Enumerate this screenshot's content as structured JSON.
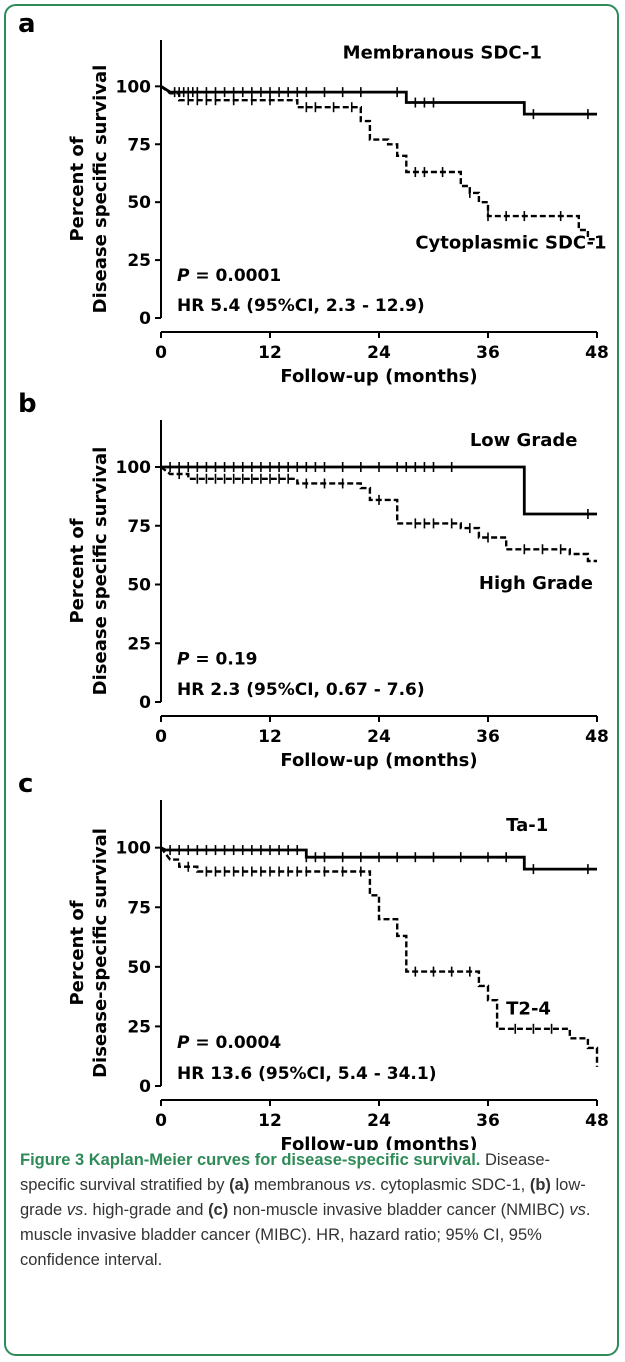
{
  "chart_data": [
    {
      "type": "line",
      "subtype": "kaplan-meier",
      "panel": "a",
      "xlabel": "Follow-up (months)",
      "ylabel_line1": "Percent of",
      "ylabel_line2": "Disease specific survival",
      "xticks": [
        "0",
        "12",
        "24",
        "36",
        "48"
      ],
      "yticks": [
        "0",
        "25",
        "50",
        "75",
        "100"
      ],
      "xlim": [
        0,
        48
      ],
      "ylim": [
        0,
        120
      ],
      "p_prefix": "P",
      "p_text": " = 0.0001",
      "hr_text": "HR 5.4 (95%CI, 2.3 - 12.9)",
      "series": [
        {
          "name": "Membranous SDC-1",
          "style": "solid",
          "label_at": [
            20,
            112
          ],
          "steps": [
            [
              0,
              100
            ],
            [
              1,
              97.5
            ],
            [
              27,
              97.5
            ],
            [
              27,
              93
            ],
            [
              40,
              93
            ],
            [
              40,
              88
            ],
            [
              48,
              88
            ]
          ],
          "censor": [
            1.5,
            2,
            2.5,
            3,
            3.5,
            4,
            5,
            6,
            7,
            8,
            9,
            10,
            11,
            12,
            13,
            14,
            15,
            16,
            18,
            20,
            22,
            26,
            28,
            29,
            30,
            41,
            47
          ]
        },
        {
          "name": "Cytoplasmic SDC-1",
          "style": "dashed",
          "label_at": [
            28,
            30
          ],
          "steps": [
            [
              0,
              100
            ],
            [
              1,
              97
            ],
            [
              2,
              97
            ],
            [
              2,
              94
            ],
            [
              15,
              94
            ],
            [
              15,
              91
            ],
            [
              22,
              91
            ],
            [
              22,
              85
            ],
            [
              23,
              85
            ],
            [
              23,
              77
            ],
            [
              25,
              77
            ],
            [
              25,
              75
            ],
            [
              26,
              75
            ],
            [
              26,
              70
            ],
            [
              27,
              70
            ],
            [
              27,
              63
            ],
            [
              33,
              63
            ],
            [
              33,
              57
            ],
            [
              34,
              57
            ],
            [
              34,
              54
            ],
            [
              35,
              54
            ],
            [
              35,
              50
            ],
            [
              36,
              50
            ],
            [
              36,
              44
            ],
            [
              46,
              44
            ],
            [
              46,
              38
            ],
            [
              47,
              38
            ],
            [
              47,
              34
            ],
            [
              48,
              34
            ]
          ],
          "censor": [
            3,
            4,
            5,
            6,
            8,
            10,
            12,
            16,
            17,
            19,
            21,
            28,
            29,
            31,
            34,
            36,
            38,
            40,
            44
          ]
        }
      ]
    },
    {
      "type": "line",
      "subtype": "kaplan-meier",
      "panel": "b",
      "xlabel": "Follow-up (months)",
      "ylabel_line1": "Percent of",
      "ylabel_line2": "Disease specific survival",
      "xticks": [
        "0",
        "12",
        "24",
        "36",
        "48"
      ],
      "yticks": [
        "0",
        "25",
        "50",
        "75",
        "100"
      ],
      "xlim": [
        0,
        48
      ],
      "ylim": [
        0,
        120
      ],
      "p_prefix": "P",
      "p_text": " = 0.19",
      "hr_text": "HR 2.3 (95%CI, 0.67 - 7.6)",
      "series": [
        {
          "name": "Low Grade",
          "style": "solid",
          "label_at": [
            34,
            109
          ],
          "steps": [
            [
              0,
              100
            ],
            [
              40,
              100
            ],
            [
              40,
              80
            ],
            [
              48,
              80
            ]
          ],
          "censor": [
            1,
            2,
            3,
            4,
            5,
            6,
            7,
            8,
            9,
            10,
            11,
            12,
            13,
            14,
            15,
            16,
            17,
            18,
            20,
            22,
            24,
            26,
            27,
            28,
            29,
            30,
            32,
            47
          ]
        },
        {
          "name": "High Grade",
          "style": "dashed",
          "label_at": [
            35,
            48
          ],
          "steps": [
            [
              0,
              100
            ],
            [
              1,
              97
            ],
            [
              3,
              97
            ],
            [
              3,
              95
            ],
            [
              15,
              95
            ],
            [
              15,
              93
            ],
            [
              22,
              93
            ],
            [
              22,
              91
            ],
            [
              23,
              91
            ],
            [
              23,
              86
            ],
            [
              26,
              86
            ],
            [
              26,
              76
            ],
            [
              33,
              76
            ],
            [
              33,
              74
            ],
            [
              35,
              74
            ],
            [
              35,
              70
            ],
            [
              38,
              70
            ],
            [
              38,
              65
            ],
            [
              45,
              65
            ],
            [
              45,
              63
            ],
            [
              47,
              63
            ],
            [
              47,
              60
            ],
            [
              48,
              60
            ]
          ],
          "censor": [
            2,
            4,
            5,
            6,
            7,
            8,
            9,
            10,
            11,
            12,
            13,
            14,
            16,
            18,
            20,
            24,
            28,
            29,
            30,
            32,
            34,
            36,
            40,
            42,
            44
          ]
        }
      ]
    },
    {
      "type": "line",
      "subtype": "kaplan-meier",
      "panel": "c",
      "xlabel": "Follow-up (months)",
      "ylabel_line1": "Percent of",
      "ylabel_line2": "Disease-specific survival",
      "xticks": [
        "0",
        "12",
        "24",
        "36",
        "48"
      ],
      "yticks": [
        "0",
        "25",
        "50",
        "75",
        "100"
      ],
      "xlim": [
        0,
        48
      ],
      "ylim": [
        0,
        120
      ],
      "p_prefix": "P",
      "p_text": " = 0.0004",
      "hr_text": "HR 13.6 (95%CI, 5.4 - 34.1)",
      "series": [
        {
          "name": "Ta-1",
          "style": "solid",
          "label_at": [
            38,
            107
          ],
          "steps": [
            [
              0,
              100
            ],
            [
              0.5,
              99
            ],
            [
              16,
              99
            ],
            [
              16,
              96
            ],
            [
              40,
              96
            ],
            [
              40,
              91
            ],
            [
              48,
              91
            ]
          ],
          "censor": [
            1,
            2,
            3,
            4,
            5,
            6,
            7,
            8,
            9,
            10,
            11,
            12,
            13,
            14,
            15,
            16,
            17,
            18,
            20,
            22,
            24,
            26,
            28,
            30,
            33,
            36,
            38,
            41,
            47
          ]
        },
        {
          "name": "T2-4",
          "style": "dashed",
          "label_at": [
            38,
            30
          ],
          "steps": [
            [
              0,
              100
            ],
            [
              1,
              95
            ],
            [
              2,
              95
            ],
            [
              2,
              92
            ],
            [
              4,
              92
            ],
            [
              4,
              90
            ],
            [
              23,
              90
            ],
            [
              23,
              80
            ],
            [
              24,
              80
            ],
            [
              24,
              70
            ],
            [
              26,
              70
            ],
            [
              26,
              63
            ],
            [
              27,
              63
            ],
            [
              27,
              48
            ],
            [
              35,
              48
            ],
            [
              35,
              42
            ],
            [
              36,
              42
            ],
            [
              36,
              36
            ],
            [
              37,
              36
            ],
            [
              37,
              24
            ],
            [
              45,
              24
            ],
            [
              45,
              20
            ],
            [
              47,
              20
            ],
            [
              47,
              16
            ],
            [
              48,
              16
            ],
            [
              48,
              8
            ]
          ],
          "censor": [
            3,
            5,
            6,
            7,
            8,
            9,
            10,
            11,
            12,
            13,
            14,
            15,
            16,
            18,
            20,
            22,
            28,
            30,
            32,
            34,
            39,
            41,
            43
          ]
        }
      ]
    }
  ],
  "caption": {
    "title": "Figure 3 Kaplan-Meier curves for disease-specific survival.",
    "seg1": " Disease-specific survival stratified by ",
    "a": "(a)",
    "seg2": " membranous ",
    "vs1": "vs",
    "seg3": ". cytoplasmic SDC-1, ",
    "b": "(b)",
    "seg4": " low-grade ",
    "vs2": "vs",
    "seg5": ". high-grade and ",
    "c": "(c)",
    "seg6": " non-muscle invasive bladder cancer (NMIBC) ",
    "vs3": "vs",
    "seg7": ". muscle invasive bladder cancer (MIBC). HR, hazard ratio; 95% CI, 95% confidence interval."
  }
}
